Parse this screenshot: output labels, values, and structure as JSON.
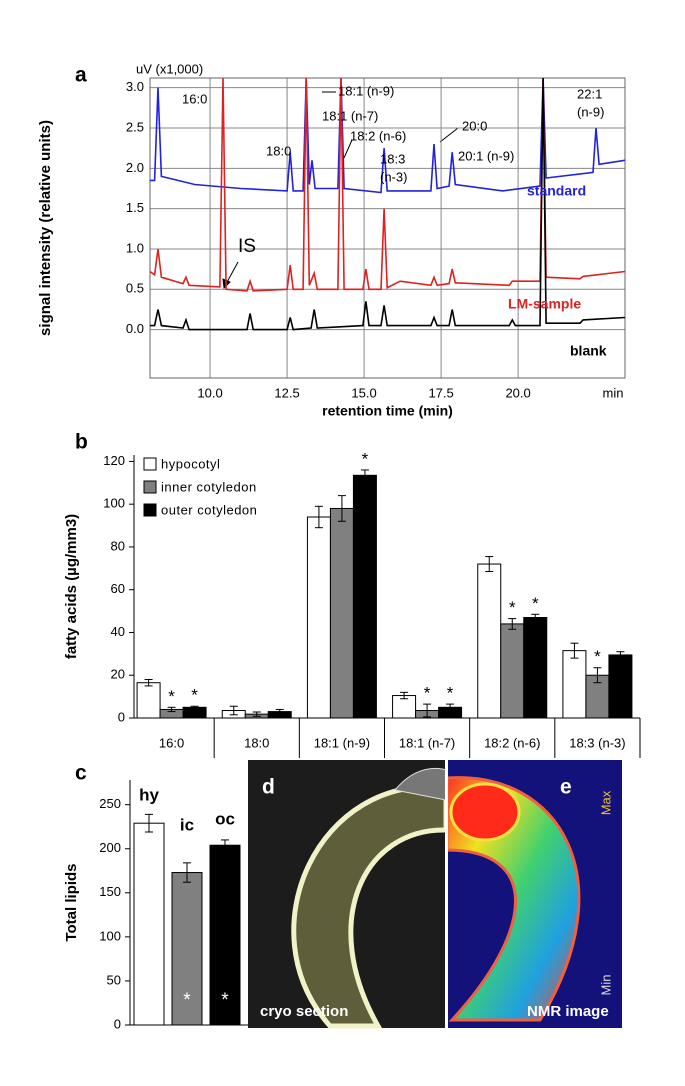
{
  "chart_data": [
    {
      "type": "line",
      "panel": "a",
      "ylabel": "signal intensity (relative units)",
      "xlabel": "retention time (min)",
      "y_unit": "uV (x1,000)",
      "x_unit": "min",
      "xlim": [
        8.05,
        23.47
      ],
      "ylim": [
        -0.6,
        3.12
      ],
      "xticks": [
        {
          "value": 10,
          "label": "10.0"
        },
        {
          "value": 12.5,
          "label": "12.5"
        },
        {
          "value": 15,
          "label": "15.0"
        },
        {
          "value": 17.5,
          "label": "17.5"
        },
        {
          "value": 20,
          "label": "20.0"
        }
      ],
      "yticks": [
        {
          "value": 0,
          "label": "0.0"
        },
        {
          "value": 0.5,
          "label": "0.5"
        },
        {
          "value": 1,
          "label": "1.0"
        },
        {
          "value": 1.5,
          "label": "1.5"
        },
        {
          "value": 2,
          "label": "2.0"
        },
        {
          "value": 2.5,
          "label": "2.5"
        },
        {
          "value": 3,
          "label": "3.0"
        }
      ],
      "grid": true,
      "series": [
        {
          "name": "standard",
          "color": "#2222dd",
          "x": [
            8.05,
            8.2,
            8.31,
            8.42,
            9.5,
            11.0,
            12.5,
            12.6,
            12.7,
            13.02,
            13.12,
            13.22,
            13.31,
            13.41,
            14.15,
            14.25,
            14.35,
            15.55,
            15.65,
            15.75,
            17.17,
            17.27,
            17.37,
            17.76,
            17.86,
            17.96,
            19.5,
            20.71,
            20.81,
            20.91,
            22.43,
            22.53,
            22.63,
            23.47
          ],
          "values": [
            1.85,
            1.85,
            3.0,
            1.9,
            1.8,
            1.75,
            1.72,
            2.2,
            1.72,
            1.72,
            3.12,
            1.8,
            2.1,
            1.75,
            1.75,
            3.12,
            1.75,
            1.7,
            2.25,
            1.72,
            1.72,
            2.3,
            1.75,
            1.78,
            2.2,
            1.8,
            1.72,
            1.78,
            3.12,
            1.88,
            1.95,
            2.5,
            2.05,
            2.1
          ]
        },
        {
          "name": "LM-sample",
          "color": "#dd2222",
          "x": [
            8.05,
            8.2,
            8.31,
            8.42,
            9.12,
            9.22,
            9.32,
            10.32,
            10.42,
            10.52,
            11.2,
            11.3,
            11.4,
            12.5,
            12.6,
            12.7,
            13.02,
            13.12,
            13.22,
            13.38,
            13.48,
            14.15,
            14.25,
            14.35,
            14.96,
            15.06,
            15.16,
            15.55,
            15.65,
            15.75,
            16.17,
            17.17,
            17.27,
            17.37,
            17.76,
            17.86,
            17.96,
            19.71,
            19.81,
            20.71,
            20.81,
            20.91,
            22.01,
            22.11,
            23.47
          ],
          "values": [
            0.72,
            0.68,
            1.0,
            0.65,
            0.57,
            0.65,
            0.55,
            0.53,
            3.12,
            0.5,
            0.48,
            0.6,
            0.48,
            0.5,
            0.8,
            0.5,
            0.5,
            3.12,
            0.55,
            0.7,
            0.5,
            0.5,
            3.12,
            0.5,
            0.5,
            0.75,
            0.5,
            0.5,
            1.5,
            0.52,
            0.6,
            0.55,
            0.65,
            0.55,
            0.57,
            0.75,
            0.58,
            0.55,
            0.6,
            0.6,
            3.12,
            0.65,
            0.63,
            0.66,
            0.72
          ]
        },
        {
          "name": "blank",
          "color": "#000000",
          "x": [
            8.05,
            8.2,
            8.31,
            8.42,
            9.12,
            9.22,
            9.32,
            11.2,
            11.3,
            11.4,
            12.5,
            12.6,
            12.7,
            13.28,
            13.38,
            13.48,
            14.96,
            15.06,
            15.16,
            15.55,
            15.65,
            15.75,
            17.17,
            17.27,
            17.37,
            17.76,
            17.86,
            17.96,
            19.71,
            19.81,
            19.91,
            20.71,
            20.81,
            20.91,
            22.01,
            22.11,
            23.47
          ],
          "values": [
            0.05,
            0.05,
            0.25,
            0.05,
            0.02,
            0.12,
            0,
            0,
            0.2,
            0,
            0,
            0.15,
            0,
            0.02,
            0.25,
            0.02,
            0.05,
            0.35,
            0.05,
            0.05,
            0.3,
            0.05,
            0.05,
            0.15,
            0.05,
            0.05,
            0.25,
            0.05,
            0.05,
            0.12,
            0.05,
            0.05,
            3.12,
            0.08,
            0.08,
            0.12,
            0.15
          ]
        }
      ],
      "annotations": [
        "16:0",
        "18:0",
        "18:1 (n-9)",
        "18:1 (n-7)",
        "18:2 (n-6)",
        [
          "18:3",
          "(n-3)"
        ],
        "20:0",
        "20:1 (n-9)",
        [
          "22:1",
          "(n-9)"
        ],
        "IS"
      ]
    },
    {
      "type": "bar",
      "panel": "b",
      "ylabel": "fatty acids (µg/mm3)",
      "categories": [
        "16:0",
        "18:0",
        "18:1 (n-9)",
        "18:1 (n-7)",
        "18:2 (n-6)",
        "18:3 (n-3)"
      ],
      "ylim": [
        0,
        123
      ],
      "yticks": [
        0,
        20,
        40,
        60,
        80,
        100,
        120
      ],
      "series": [
        {
          "name": "hypocotyl",
          "color": "#ffffff",
          "values": [
            16.5,
            3.5,
            94,
            10.5,
            72,
            31.5
          ],
          "errors": [
            1.5,
            2,
            5,
            1.5,
            3.5,
            3.5
          ],
          "significance": [
            null,
            null,
            null,
            null,
            null,
            null
          ]
        },
        {
          "name": "inner cotyledon",
          "color": "#808080",
          "values": [
            4,
            1.8,
            98,
            3.5,
            44,
            20
          ],
          "errors": [
            1,
            1,
            6,
            3,
            2.5,
            3.5
          ],
          "significance": [
            "*",
            null,
            null,
            "*",
            "*",
            "*"
          ]
        },
        {
          "name": "outer cotyledon",
          "color": "#000000",
          "values": [
            5,
            3,
            113.5,
            5,
            47,
            29.5
          ],
          "errors": [
            0.5,
            1,
            2.5,
            1.5,
            1.5,
            1.5
          ],
          "significance": [
            "*",
            null,
            "*",
            "*",
            "*",
            null
          ]
        }
      ]
    },
    {
      "type": "bar",
      "panel": "c",
      "ylabel": "Total lipids",
      "categories": [
        "hy",
        "ic",
        "oc"
      ],
      "values": [
        229,
        173,
        204
      ],
      "errors": [
        10,
        11,
        6
      ],
      "colors": [
        "#ffffff",
        "#808080",
        "#000000"
      ],
      "significance": [
        null,
        "*",
        "*"
      ],
      "ylim": [
        0,
        278
      ],
      "yticks": [
        0,
        50,
        100,
        150,
        200,
        250
      ]
    }
  ],
  "images": [
    {
      "panel": "d",
      "caption": "cryo section"
    },
    {
      "panel": "e",
      "caption": "NMR image",
      "scale_max": "Max",
      "scale_min": "Min"
    }
  ]
}
